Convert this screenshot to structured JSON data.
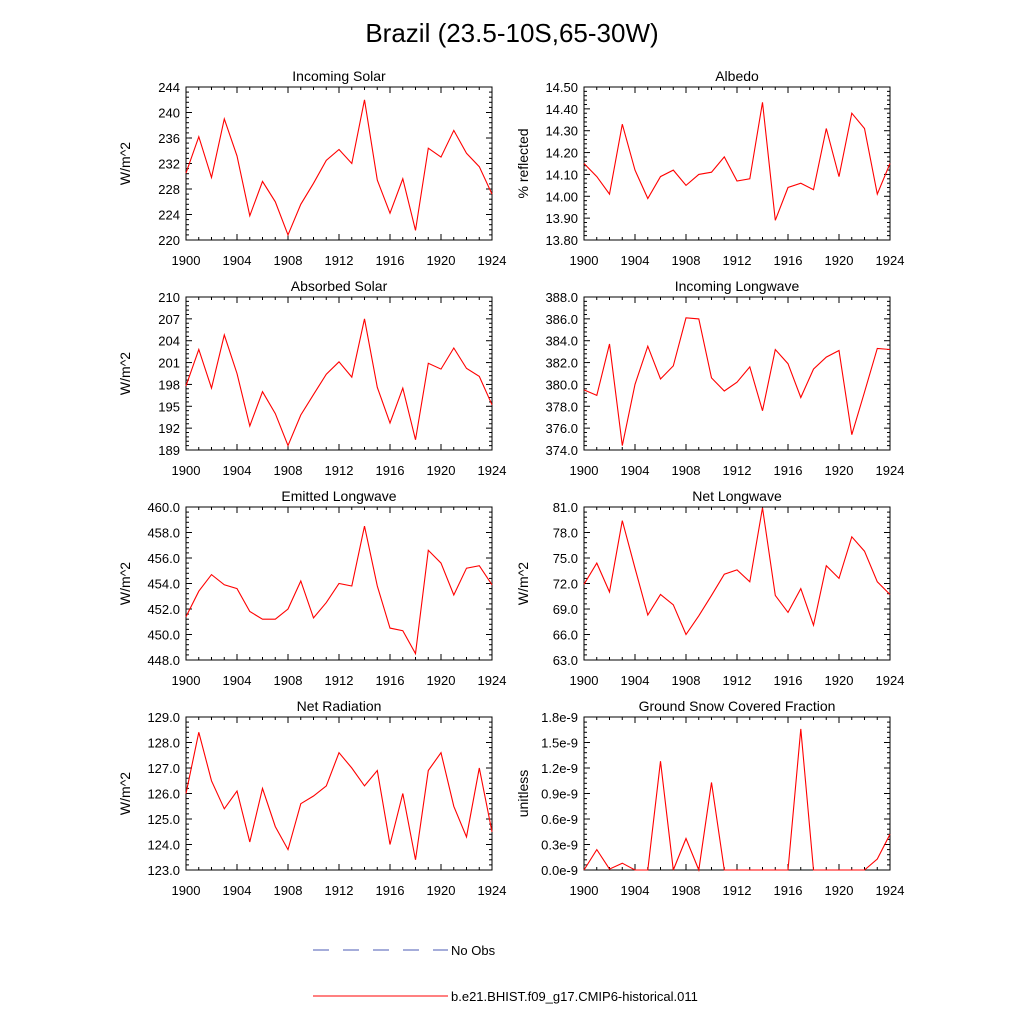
{
  "title": "Brazil (23.5-10S,65-30W)",
  "colors": {
    "model": "#ff0000",
    "obs": "#4b5bb5",
    "axis": "#000000"
  },
  "legend": {
    "obs_label": "No Obs",
    "model_label": "b.e21.BHIST.f09_g17.CMIP6-historical.011"
  },
  "chart_data": [
    {
      "type": "line",
      "title": "Incoming Solar",
      "ylabel": "W/m^2",
      "xlim": [
        1900,
        1924
      ],
      "ylim": [
        220,
        244
      ],
      "x_ticks": [
        "1900",
        "1904",
        "1908",
        "1912",
        "1916",
        "1920",
        "1924"
      ],
      "y_ticks": [
        "220",
        "224",
        "228",
        "232",
        "236",
        "240",
        "244"
      ],
      "x": [
        1900,
        1901,
        1902,
        1903,
        1904,
        1905,
        1906,
        1907,
        1908,
        1909,
        1910,
        1911,
        1912,
        1913,
        1914,
        1915,
        1916,
        1917,
        1918,
        1919,
        1920,
        1921,
        1922,
        1923,
        1924
      ],
      "series": [
        {
          "values": [
            230.5,
            236.2,
            229.8,
            239.0,
            233.2,
            223.8,
            229.2,
            226.0,
            220.8,
            225.6,
            228.9,
            232.5,
            234.2,
            232.0,
            242.0,
            229.4,
            224.2,
            229.6,
            221.5,
            234.4,
            233.0,
            237.2,
            233.6,
            231.5,
            227.2
          ]
        }
      ]
    },
    {
      "type": "line",
      "title": "Albedo",
      "ylabel": "% reflected",
      "xlim": [
        1900,
        1924
      ],
      "ylim": [
        13.8,
        14.5
      ],
      "x_ticks": [
        "1900",
        "1904",
        "1908",
        "1912",
        "1916",
        "1920",
        "1924"
      ],
      "y_ticks": [
        "13.80",
        "13.90",
        "14.00",
        "14.10",
        "14.20",
        "14.30",
        "14.40",
        "14.50"
      ],
      "x": [
        1900,
        1901,
        1902,
        1903,
        1904,
        1905,
        1906,
        1907,
        1908,
        1909,
        1910,
        1911,
        1912,
        1913,
        1914,
        1915,
        1916,
        1917,
        1918,
        1919,
        1920,
        1921,
        1922,
        1923,
        1924
      ],
      "series": [
        {
          "values": [
            14.15,
            14.09,
            14.01,
            14.33,
            14.12,
            13.99,
            14.09,
            14.12,
            14.05,
            14.1,
            14.11,
            14.18,
            14.07,
            14.08,
            14.43,
            13.89,
            14.04,
            14.06,
            14.03,
            14.31,
            14.09,
            14.38,
            14.31,
            14.01,
            14.15
          ]
        }
      ]
    },
    {
      "type": "line",
      "title": "Absorbed Solar",
      "ylabel": "W/m^2",
      "xlim": [
        1900,
        1924
      ],
      "ylim": [
        189,
        210
      ],
      "x_ticks": [
        "1900",
        "1904",
        "1908",
        "1912",
        "1916",
        "1920",
        "1924"
      ],
      "y_ticks": [
        "189",
        "192",
        "195",
        "198",
        "201",
        "204",
        "207",
        "210"
      ],
      "x": [
        1900,
        1901,
        1902,
        1903,
        1904,
        1905,
        1906,
        1907,
        1908,
        1909,
        1910,
        1911,
        1912,
        1913,
        1914,
        1915,
        1916,
        1917,
        1918,
        1919,
        1920,
        1921,
        1922,
        1923,
        1924
      ],
      "series": [
        {
          "values": [
            197.8,
            202.8,
            197.5,
            204.8,
            199.5,
            192.3,
            197.0,
            194.0,
            189.6,
            193.8,
            196.6,
            199.4,
            201.1,
            199.0,
            207.0,
            197.6,
            192.7,
            197.5,
            190.4,
            200.9,
            200.1,
            203.0,
            200.2,
            199.1,
            195.2
          ]
        }
      ]
    },
    {
      "type": "line",
      "title": "Incoming Longwave",
      "ylabel": "",
      "xlim": [
        1900,
        1924
      ],
      "ylim": [
        374,
        388
      ],
      "x_ticks": [
        "1900",
        "1904",
        "1908",
        "1912",
        "1916",
        "1920",
        "1924"
      ],
      "y_ticks": [
        "374.0",
        "376.0",
        "378.0",
        "380.0",
        "382.0",
        "384.0",
        "386.0",
        "388.0"
      ],
      "x": [
        1900,
        1901,
        1902,
        1903,
        1904,
        1905,
        1906,
        1907,
        1908,
        1909,
        1910,
        1911,
        1912,
        1913,
        1914,
        1915,
        1916,
        1917,
        1918,
        1919,
        1920,
        1921,
        1922,
        1923,
        1924
      ],
      "series": [
        {
          "values": [
            379.5,
            379.0,
            383.7,
            374.4,
            380.0,
            383.5,
            380.5,
            381.7,
            386.1,
            386.0,
            380.6,
            379.4,
            380.2,
            381.6,
            377.6,
            383.2,
            381.9,
            378.8,
            381.4,
            382.5,
            383.1,
            375.4,
            379.3,
            383.3,
            383.2
          ]
        }
      ]
    },
    {
      "type": "line",
      "title": "Emitted Longwave",
      "ylabel": "W/m^2",
      "xlim": [
        1900,
        1924
      ],
      "ylim": [
        448,
        460
      ],
      "x_ticks": [
        "1900",
        "1904",
        "1908",
        "1912",
        "1916",
        "1920",
        "1924"
      ],
      "y_ticks": [
        "448.0",
        "450.0",
        "452.0",
        "454.0",
        "456.0",
        "458.0",
        "460.0"
      ],
      "x": [
        1900,
        1901,
        1902,
        1903,
        1904,
        1905,
        1906,
        1907,
        1908,
        1909,
        1910,
        1911,
        1912,
        1913,
        1914,
        1915,
        1916,
        1917,
        1918,
        1919,
        1920,
        1921,
        1922,
        1923,
        1924
      ],
      "series": [
        {
          "values": [
            451.4,
            453.4,
            454.7,
            453.9,
            453.6,
            451.8,
            451.2,
            451.2,
            452.0,
            454.2,
            451.3,
            452.5,
            454.0,
            453.8,
            458.5,
            453.8,
            450.5,
            450.3,
            448.5,
            456.6,
            455.6,
            453.1,
            455.2,
            455.4,
            453.9
          ]
        }
      ]
    },
    {
      "type": "line",
      "title": "Net Longwave",
      "ylabel": "W/m^2",
      "xlim": [
        1900,
        1924
      ],
      "ylim": [
        63,
        81
      ],
      "x_ticks": [
        "1900",
        "1904",
        "1908",
        "1912",
        "1916",
        "1920",
        "1924"
      ],
      "y_ticks": [
        "63.0",
        "66.0",
        "69.0",
        "72.0",
        "75.0",
        "78.0",
        "81.0"
      ],
      "x": [
        1900,
        1901,
        1902,
        1903,
        1904,
        1905,
        1906,
        1907,
        1908,
        1909,
        1910,
        1911,
        1912,
        1913,
        1914,
        1915,
        1916,
        1917,
        1918,
        1919,
        1920,
        1921,
        1922,
        1923,
        1924
      ],
      "series": [
        {
          "values": [
            71.9,
            74.4,
            71.0,
            79.4,
            73.8,
            68.3,
            70.7,
            69.5,
            66.0,
            68.2,
            70.6,
            73.1,
            73.6,
            72.2,
            80.9,
            70.6,
            68.6,
            71.4,
            67.1,
            74.1,
            72.6,
            77.5,
            75.8,
            72.2,
            70.7
          ]
        }
      ]
    },
    {
      "type": "line",
      "title": "Net Radiation",
      "ylabel": "W/m^2",
      "xlim": [
        1900,
        1924
      ],
      "ylim": [
        123,
        129
      ],
      "x_ticks": [
        "1900",
        "1904",
        "1908",
        "1912",
        "1916",
        "1920",
        "1924"
      ],
      "y_ticks": [
        "123.0",
        "124.0",
        "125.0",
        "126.0",
        "127.0",
        "128.0",
        "129.0"
      ],
      "x": [
        1900,
        1901,
        1902,
        1903,
        1904,
        1905,
        1906,
        1907,
        1908,
        1909,
        1910,
        1911,
        1912,
        1913,
        1914,
        1915,
        1916,
        1917,
        1918,
        1919,
        1920,
        1921,
        1922,
        1923,
        1924
      ],
      "series": [
        {
          "values": [
            126.0,
            128.4,
            126.5,
            125.4,
            126.1,
            124.1,
            126.2,
            124.7,
            123.8,
            125.6,
            125.9,
            126.3,
            127.6,
            127.0,
            126.3,
            126.9,
            124.0,
            126.0,
            123.4,
            126.9,
            127.6,
            125.5,
            124.3,
            127.0,
            124.5
          ]
        }
      ]
    },
    {
      "type": "line",
      "title": "Ground Snow Covered Fraction",
      "ylabel": "unitless",
      "xlim": [
        1900,
        1924
      ],
      "ylim": [
        0,
        1.8e-09
      ],
      "x_ticks": [
        "1900",
        "1904",
        "1908",
        "1912",
        "1916",
        "1920",
        "1924"
      ],
      "y_ticks": [
        "0.0e-9",
        "0.3e-9",
        "0.6e-9",
        "0.9e-9",
        "1.2e-9",
        "1.5e-9",
        "1.8e-9"
      ],
      "x": [
        1900,
        1901,
        1902,
        1903,
        1904,
        1905,
        1906,
        1907,
        1908,
        1909,
        1910,
        1911,
        1912,
        1913,
        1914,
        1915,
        1916,
        1917,
        1918,
        1919,
        1920,
        1921,
        1922,
        1923,
        1924
      ],
      "series": [
        {
          "values": [
            0.0,
            2.4e-10,
            1e-11,
            8e-11,
            0.0,
            0.0,
            1.28e-09,
            0.0,
            3.7e-10,
            0.0,
            1.03e-09,
            0.0,
            0.0,
            0.0,
            0.0,
            0.0,
            0.0,
            1.66e-09,
            0.0,
            0.0,
            0.0,
            0.0,
            0.0,
            1.3e-10,
            4.2e-10
          ]
        }
      ]
    }
  ]
}
